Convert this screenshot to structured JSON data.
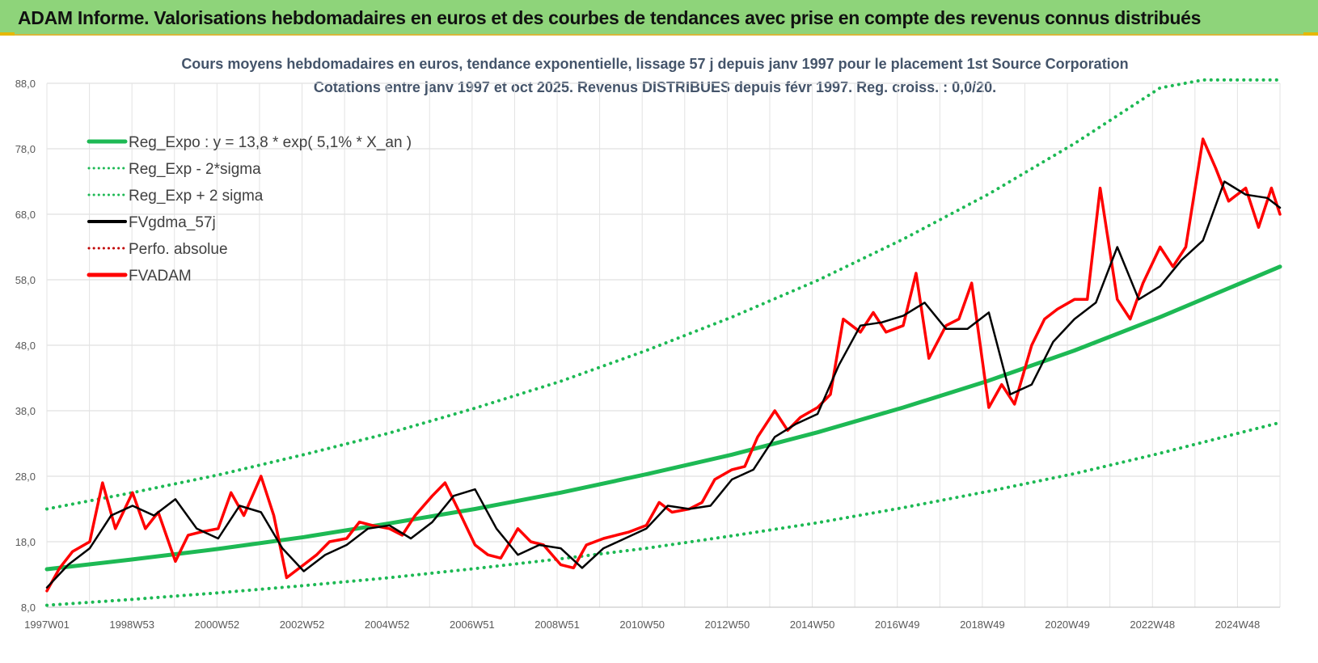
{
  "header": {
    "title": "ADAM Informe. Valorisations hebdomadaires en euros et des courbes de tendances avec prise en compte des revenus connus distribués"
  },
  "colors": {
    "header_bg": "#8ed47a",
    "trend": "#1db954",
    "smoothed": "#000000",
    "price": "#ff0000",
    "perf": "#c00000"
  },
  "chart_data": {
    "type": "line",
    "title": "Cours moyens hebdomadaires en euros, tendance exponentielle, lissage 57 j depuis janv 1997 pour le placement 1st Source Corporation",
    "subtitle": "Cotations entre janv 1997 et oct 2025. Revenus DISTRIBUES depuis févr 1997. Reg. croiss. : 0,0/20.",
    "ylim": [
      8,
      88
    ],
    "yticks": [
      "88,0",
      "78,0",
      "68,0",
      "58,0",
      "48,0",
      "38,0",
      "28,0",
      "18,0",
      "8,0"
    ],
    "xlim": [
      1997.0,
      2025.8
    ],
    "xtick_labels": [
      "1997W01",
      "1998W53",
      "2000W52",
      "2002W52",
      "2004W52",
      "2006W51",
      "2008W51",
      "2010W50",
      "2012W50",
      "2014W50",
      "2016W49",
      "2018W49",
      "2020W49",
      "2022W48",
      "2024W48"
    ],
    "legend_position": "top-left",
    "legend": [
      {
        "label": "Reg_Expo : y = 13,8 * exp( 5,1% *  X_an )",
        "style": "solid-thick",
        "color": "#1db954"
      },
      {
        "label": "Reg_Exp - 2*sigma",
        "style": "dotted",
        "color": "#1db954"
      },
      {
        "label": "Reg_Exp + 2 sigma",
        "style": "dotted",
        "color": "#1db954"
      },
      {
        "label": "FVgdma_57j",
        "style": "solid",
        "color": "#000000"
      },
      {
        "label": "Perfo. absolue",
        "style": "dotted",
        "color": "#c00000"
      },
      {
        "label": "FVADAM",
        "style": "solid-thick",
        "color": "#ff0000"
      }
    ],
    "regression": {
      "a": 13.8,
      "rate": 0.051,
      "start": 1997.0
    },
    "series": [
      {
        "name": "Reg_Expo : y = 13,8 * exp( 5,1% *  X_an )",
        "x": [
          1997.0,
          1999.0,
          2001.0,
          2003.0,
          2005.0,
          2007.0,
          2009.0,
          2011.0,
          2013.0,
          2015.0,
          2017.0,
          2019.0,
          2021.0,
          2023.0,
          2025.8
        ],
        "y": [
          13.8,
          15.3,
          16.9,
          18.7,
          20.8,
          23.0,
          25.5,
          28.3,
          31.3,
          34.7,
          38.5,
          42.6,
          47.2,
          52.3,
          60.0
        ]
      },
      {
        "name": "Reg_Exp - 2*sigma",
        "x": [
          1997.0,
          1999.0,
          2001.0,
          2003.0,
          2005.0,
          2007.0,
          2009.0,
          2011.0,
          2013.0,
          2015.0,
          2017.0,
          2019.0,
          2021.0,
          2023.0,
          2025.8
        ],
        "y": [
          8.3,
          9.2,
          10.2,
          11.3,
          12.5,
          13.9,
          15.4,
          17.0,
          18.9,
          20.9,
          23.2,
          25.7,
          28.4,
          31.5,
          36.2
        ]
      },
      {
        "name": "Reg_Exp + 2 sigma",
        "x": [
          1997.0,
          1999.0,
          2001.0,
          2003.0,
          2005.0,
          2007.0,
          2009.0,
          2011.0,
          2013.0,
          2015.0,
          2017.0,
          2019.0,
          2021.0,
          2023.0,
          2024.0,
          2025.8
        ],
        "y": [
          23.0,
          25.5,
          28.2,
          31.3,
          34.6,
          38.4,
          42.5,
          47.2,
          52.3,
          57.9,
          64.2,
          71.1,
          78.8,
          87.3,
          89.0,
          89.0
        ]
      },
      {
        "name": "FVgdma_57j",
        "x": [
          1997.0,
          1997.5,
          1998.0,
          1998.5,
          1999.0,
          1999.5,
          2000.0,
          2000.5,
          2001.0,
          2001.5,
          2002.0,
          2002.5,
          2003.0,
          2003.5,
          2004.0,
          2004.5,
          2005.0,
          2005.5,
          2006.0,
          2006.5,
          2007.0,
          2007.5,
          2008.0,
          2008.5,
          2009.0,
          2009.5,
          2010.0,
          2010.5,
          2011.0,
          2011.5,
          2012.0,
          2012.5,
          2013.0,
          2013.5,
          2014.0,
          2014.5,
          2015.0,
          2015.5,
          2016.0,
          2016.5,
          2017.0,
          2017.5,
          2018.0,
          2018.5,
          2019.0,
          2019.5,
          2020.0,
          2020.5,
          2021.0,
          2021.5,
          2022.0,
          2022.5,
          2023.0,
          2023.5,
          2024.0,
          2024.5,
          2025.0,
          2025.5,
          2025.8
        ],
        "y": [
          11.0,
          14.5,
          17.0,
          22.0,
          23.5,
          22.0,
          24.5,
          20.0,
          18.5,
          23.5,
          22.5,
          17.0,
          13.5,
          16.0,
          17.5,
          20.0,
          20.5,
          18.5,
          21.0,
          25.0,
          26.0,
          20.0,
          16.0,
          17.5,
          17.0,
          14.0,
          17.0,
          18.5,
          20.0,
          23.5,
          23.0,
          23.5,
          27.5,
          29.0,
          34.0,
          36.0,
          37.5,
          45.0,
          51.0,
          51.5,
          52.5,
          54.5,
          50.5,
          50.5,
          53.0,
          40.5,
          42.0,
          48.5,
          52.0,
          54.5,
          63.0,
          55.0,
          57.0,
          61.0,
          64.0,
          73.0,
          71.0,
          70.5,
          69.0
        ]
      },
      {
        "name": "FVADAM",
        "x": [
          1997.0,
          1997.3,
          1997.6,
          1998.0,
          1998.3,
          1998.6,
          1999.0,
          1999.3,
          1999.6,
          2000.0,
          2000.3,
          2000.6,
          2001.0,
          2001.3,
          2001.6,
          2002.0,
          2002.3,
          2002.6,
          2003.0,
          2003.3,
          2003.6,
          2004.0,
          2004.3,
          2004.6,
          2005.0,
          2005.3,
          2005.6,
          2006.0,
          2006.3,
          2006.6,
          2007.0,
          2007.3,
          2007.6,
          2008.0,
          2008.3,
          2008.6,
          2009.0,
          2009.3,
          2009.6,
          2010.0,
          2010.3,
          2010.6,
          2011.0,
          2011.3,
          2011.6,
          2012.0,
          2012.3,
          2012.6,
          2013.0,
          2013.3,
          2013.6,
          2014.0,
          2014.3,
          2014.6,
          2015.0,
          2015.3,
          2015.6,
          2016.0,
          2016.3,
          2016.6,
          2017.0,
          2017.3,
          2017.6,
          2018.0,
          2018.3,
          2018.6,
          2019.0,
          2019.3,
          2019.6,
          2020.0,
          2020.3,
          2020.6,
          2021.0,
          2021.3,
          2021.6,
          2022.0,
          2022.3,
          2022.6,
          2023.0,
          2023.3,
          2023.6,
          2024.0,
          2024.3,
          2024.6,
          2025.0,
          2025.3,
          2025.6,
          2025.8
        ],
        "y": [
          10.5,
          14.0,
          16.5,
          18.0,
          27.0,
          20.0,
          25.5,
          20.0,
          22.5,
          15.0,
          19.0,
          19.5,
          20.0,
          25.5,
          22.0,
          28.0,
          22.0,
          12.5,
          14.5,
          16.0,
          18.0,
          18.5,
          21.0,
          20.5,
          20.0,
          19.0,
          22.0,
          25.0,
          27.0,
          23.0,
          17.5,
          16.0,
          15.5,
          20.0,
          18.0,
          17.5,
          14.5,
          14.0,
          17.5,
          18.5,
          19.0,
          19.5,
          20.5,
          24.0,
          22.5,
          23.0,
          24.0,
          27.5,
          29.0,
          29.5,
          34.0,
          38.0,
          35.0,
          37.0,
          38.5,
          40.5,
          52.0,
          50.0,
          53.0,
          50.0,
          51.0,
          59.0,
          46.0,
          51.0,
          52.0,
          57.5,
          38.5,
          42.0,
          39.0,
          48.0,
          52.0,
          53.5,
          55.0,
          55.0,
          72.0,
          55.0,
          52.0,
          57.5,
          63.0,
          60.0,
          63.0,
          79.5,
          75.0,
          70.0,
          72.0,
          66.0,
          72.0,
          68.0
        ]
      }
    ]
  }
}
